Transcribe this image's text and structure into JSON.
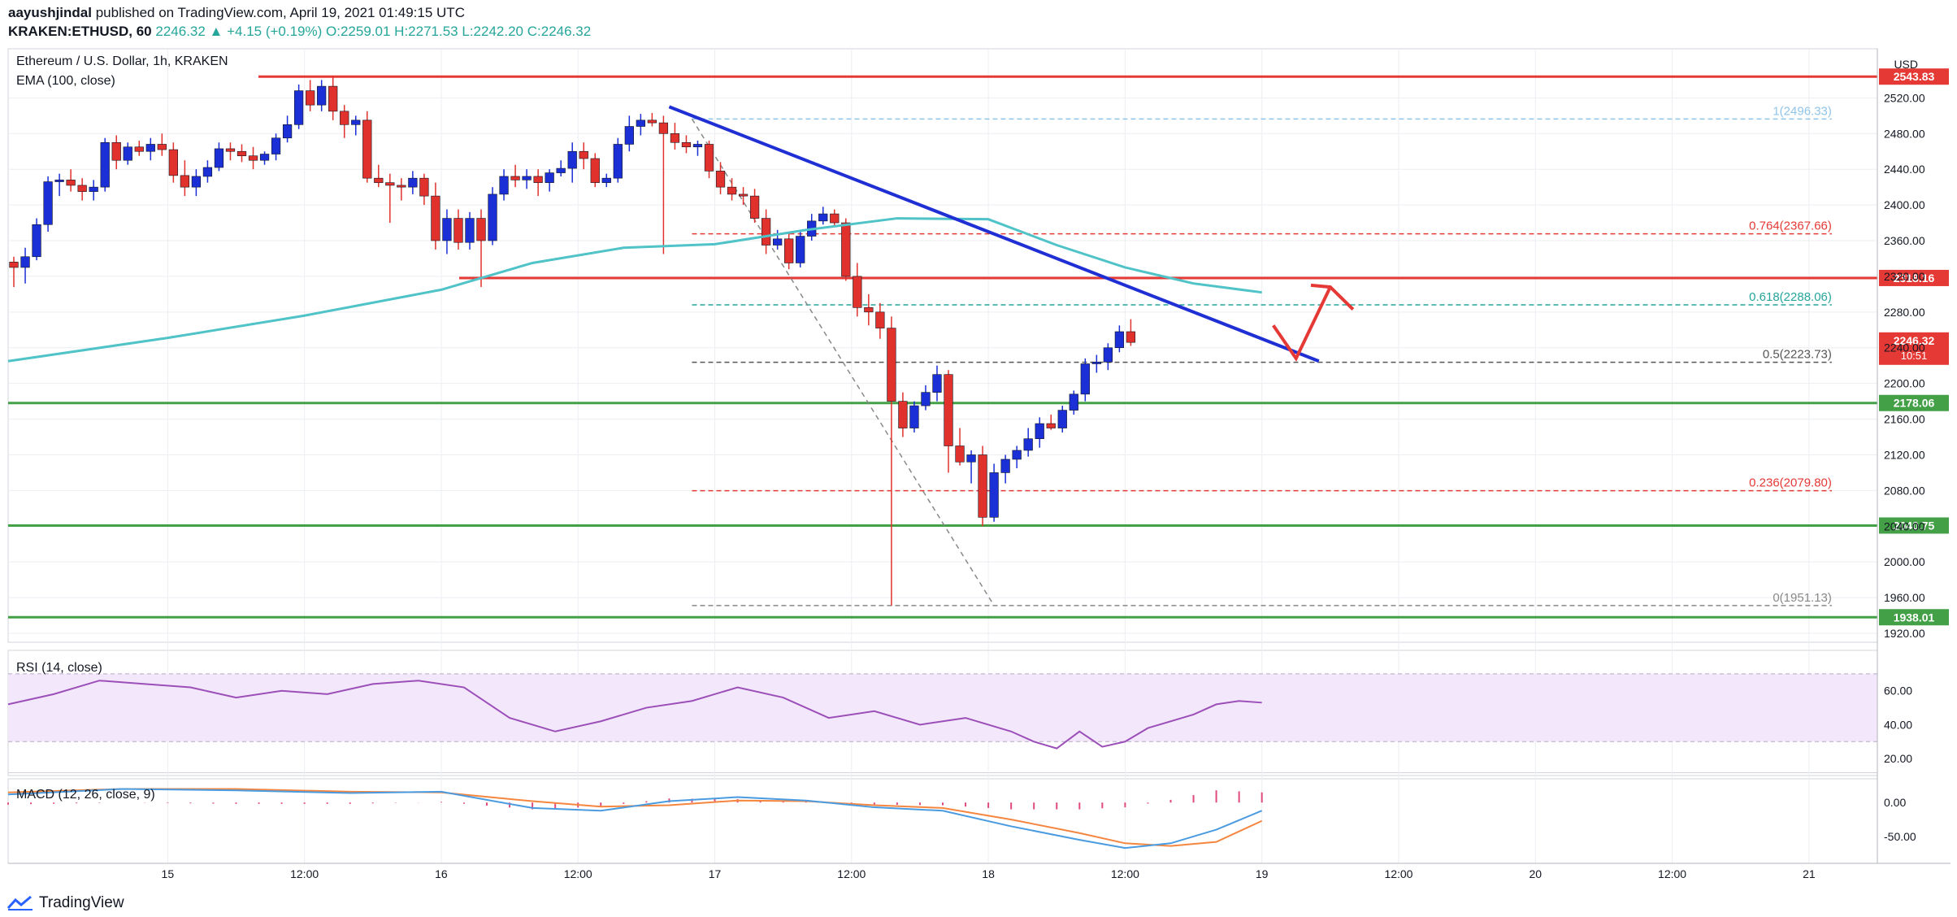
{
  "header": {
    "publisher": "aayushjindal",
    "published_text": "published on TradingView.com, April 19, 2021 01:49:15 UTC",
    "symbol_line": "KRAKEN:ETHUSD, 60",
    "change": "2246.32 ▲ +4.15 (+0.19%)",
    "o": "O:2259.01",
    "h": "H:2271.53",
    "l": "L:2242.20",
    "c": "C:2246.32"
  },
  "footer": {
    "brand": "TradingView"
  },
  "colors": {
    "up": "#1a2fd6",
    "down": "#e0312c",
    "ema": "#4fc3c7",
    "trend": "#1f2fd4",
    "res": "#e53935",
    "sup": "#43a047",
    "rsi": "#9c4fb8",
    "macd": "#4a9be0",
    "signal": "#f5863f",
    "hist": "#e04a7a"
  },
  "chart_data": {
    "type": "candlestick",
    "title": "Ethereum / U.S. Dollar, 1h, KRAKEN",
    "indicator_label": "EMA (100, close)",
    "currency_label": "USD",
    "ylim": [
      1910,
      2575
    ],
    "y_ticks": [
      1920,
      1960,
      2000,
      2040,
      2080,
      2120,
      2160,
      2200,
      2240,
      2280,
      2320,
      2360,
      2400,
      2440,
      2480,
      2520
    ],
    "x_range_hours": [
      0,
      164
    ],
    "x_ticks": [
      {
        "h": 14,
        "label": "15"
      },
      {
        "h": 26,
        "label": "12:00"
      },
      {
        "h": 38,
        "label": "16"
      },
      {
        "h": 50,
        "label": "12:00"
      },
      {
        "h": 62,
        "label": "17"
      },
      {
        "h": 74,
        "label": "12:00"
      },
      {
        "h": 86,
        "label": "18"
      },
      {
        "h": 98,
        "label": "12:00"
      },
      {
        "h": 110,
        "label": "19"
      },
      {
        "h": 122,
        "label": "12:00"
      },
      {
        "h": 134,
        "label": "20"
      },
      {
        "h": 146,
        "label": "12:00"
      },
      {
        "h": 158,
        "label": "21"
      }
    ],
    "candles": [
      [
        2336,
        2342,
        2308,
        2330
      ],
      [
        2330,
        2352,
        2312,
        2342
      ],
      [
        2342,
        2385,
        2338,
        2378
      ],
      [
        2378,
        2432,
        2370,
        2426
      ],
      [
        2426,
        2435,
        2410,
        2428
      ],
      [
        2428,
        2440,
        2415,
        2422
      ],
      [
        2422,
        2430,
        2405,
        2415
      ],
      [
        2415,
        2428,
        2405,
        2420
      ],
      [
        2420,
        2475,
        2415,
        2470
      ],
      [
        2470,
        2478,
        2440,
        2450
      ],
      [
        2450,
        2470,
        2445,
        2465
      ],
      [
        2465,
        2472,
        2455,
        2460
      ],
      [
        2460,
        2475,
        2450,
        2468
      ],
      [
        2468,
        2480,
        2455,
        2462
      ],
      [
        2462,
        2470,
        2425,
        2433
      ],
      [
        2433,
        2450,
        2410,
        2420
      ],
      [
        2420,
        2440,
        2410,
        2432
      ],
      [
        2432,
        2450,
        2425,
        2442
      ],
      [
        2442,
        2470,
        2438,
        2463
      ],
      [
        2463,
        2470,
        2450,
        2460
      ],
      [
        2460,
        2468,
        2448,
        2455
      ],
      [
        2455,
        2465,
        2440,
        2450
      ],
      [
        2450,
        2460,
        2445,
        2457
      ],
      [
        2457,
        2480,
        2450,
        2475
      ],
      [
        2475,
        2500,
        2470,
        2490
      ],
      [
        2490,
        2535,
        2485,
        2528
      ],
      [
        2528,
        2540,
        2505,
        2512
      ],
      [
        2512,
        2540,
        2505,
        2533
      ],
      [
        2533,
        2545,
        2495,
        2505
      ],
      [
        2505,
        2512,
        2475,
        2490
      ],
      [
        2490,
        2500,
        2478,
        2495
      ],
      [
        2495,
        2505,
        2425,
        2430
      ],
      [
        2430,
        2445,
        2420,
        2425
      ],
      [
        2425,
        2435,
        2380,
        2422
      ],
      [
        2422,
        2430,
        2405,
        2420
      ],
      [
        2420,
        2438,
        2412,
        2430
      ],
      [
        2430,
        2435,
        2400,
        2410
      ],
      [
        2410,
        2425,
        2350,
        2360
      ],
      [
        2360,
        2395,
        2345,
        2385
      ],
      [
        2385,
        2395,
        2350,
        2358
      ],
      [
        2358,
        2392,
        2350,
        2385
      ],
      [
        2385,
        2395,
        2308,
        2360
      ],
      [
        2360,
        2420,
        2355,
        2412
      ],
      [
        2412,
        2440,
        2405,
        2432
      ],
      [
        2432,
        2445,
        2420,
        2428
      ],
      [
        2428,
        2440,
        2418,
        2432
      ],
      [
        2432,
        2440,
        2410,
        2425
      ],
      [
        2425,
        2440,
        2415,
        2436
      ],
      [
        2436,
        2450,
        2432,
        2441
      ],
      [
        2441,
        2470,
        2425,
        2460
      ],
      [
        2460,
        2470,
        2440,
        2452
      ],
      [
        2452,
        2458,
        2420,
        2425
      ],
      [
        2425,
        2435,
        2420,
        2430
      ],
      [
        2430,
        2475,
        2425,
        2468
      ],
      [
        2468,
        2500,
        2460,
        2488
      ],
      [
        2488,
        2502,
        2478,
        2495
      ],
      [
        2495,
        2503,
        2488,
        2492
      ],
      [
        2492,
        2500,
        2345,
        2480
      ],
      [
        2480,
        2492,
        2462,
        2470
      ],
      [
        2470,
        2478,
        2458,
        2465
      ],
      [
        2465,
        2472,
        2455,
        2468
      ],
      [
        2468,
        2472,
        2430,
        2438
      ],
      [
        2438,
        2448,
        2412,
        2420
      ],
      [
        2420,
        2430,
        2405,
        2412
      ],
      [
        2412,
        2420,
        2400,
        2410
      ],
      [
        2410,
        2418,
        2380,
        2385
      ],
      [
        2385,
        2395,
        2345,
        2355
      ],
      [
        2355,
        2372,
        2350,
        2362
      ],
      [
        2362,
        2370,
        2328,
        2335
      ],
      [
        2335,
        2372,
        2330,
        2365
      ],
      [
        2365,
        2390,
        2360,
        2382
      ],
      [
        2382,
        2398,
        2378,
        2390
      ],
      [
        2390,
        2395,
        2376,
        2380
      ],
      [
        2380,
        2385,
        2315,
        2320
      ],
      [
        2320,
        2335,
        2275,
        2285
      ],
      [
        2285,
        2300,
        2265,
        2280
      ],
      [
        2280,
        2290,
        2250,
        2262
      ],
      [
        2262,
        2275,
        1951,
        2180
      ],
      [
        2180,
        2190,
        2140,
        2150
      ],
      [
        2150,
        2180,
        2145,
        2175
      ],
      [
        2175,
        2198,
        2170,
        2190
      ],
      [
        2190,
        2220,
        2180,
        2210
      ],
      [
        2210,
        2215,
        2100,
        2130
      ],
      [
        2130,
        2150,
        2108,
        2112
      ],
      [
        2112,
        2125,
        2088,
        2120
      ],
      [
        2120,
        2130,
        2040,
        2050
      ],
      [
        2050,
        2110,
        2045,
        2100
      ],
      [
        2100,
        2120,
        2088,
        2115
      ],
      [
        2115,
        2130,
        2105,
        2125
      ],
      [
        2125,
        2150,
        2118,
        2138
      ],
      [
        2138,
        2162,
        2128,
        2155
      ],
      [
        2155,
        2165,
        2148,
        2150
      ],
      [
        2150,
        2175,
        2145,
        2170
      ],
      [
        2170,
        2192,
        2165,
        2188
      ],
      [
        2188,
        2228,
        2180,
        2222
      ],
      [
        2222,
        2232,
        2212,
        2224
      ],
      [
        2224,
        2245,
        2215,
        2240
      ],
      [
        2240,
        2265,
        2235,
        2258
      ],
      [
        2258,
        2272,
        2242,
        2246
      ]
    ],
    "ema_100": [
      [
        0,
        2225
      ],
      [
        14,
        2251
      ],
      [
        26,
        2276
      ],
      [
        38,
        2305
      ],
      [
        46,
        2335
      ],
      [
        54,
        2352
      ],
      [
        62,
        2356
      ],
      [
        70,
        2372
      ],
      [
        78,
        2385
      ],
      [
        86,
        2384
      ],
      [
        92,
        2355
      ],
      [
        98,
        2330
      ],
      [
        104,
        2312
      ],
      [
        110,
        2302
      ]
    ],
    "horizontal_levels": [
      {
        "value": 2543.83,
        "label": "2543.83",
        "color": "red"
      },
      {
        "value": 2318.16,
        "label": "2318.16",
        "color": "red"
      },
      {
        "value": 2178.06,
        "label": "2178.06",
        "color": "green"
      },
      {
        "value": 2040.75,
        "label": "2040.75",
        "color": "green"
      },
      {
        "value": 1938.01,
        "label": "1938.01",
        "color": "green"
      }
    ],
    "fib_levels": [
      {
        "value": 2496.33,
        "label": "1(2496.33)"
      },
      {
        "value": 2367.66,
        "label": "0.764(2367.66)"
      },
      {
        "value": 2288.06,
        "label": "0.618(2288.06)"
      },
      {
        "value": 2223.73,
        "label": "0.5(2223.73)"
      },
      {
        "value": 2079.8,
        "label": "0.236(2079.80)"
      },
      {
        "value": 1951.13,
        "label": "0(1951.13)"
      }
    ],
    "last_price": {
      "value": 2246.32,
      "label": "2246.32",
      "countdown": "10:51"
    },
    "trendline": [
      [
        58,
        2510
      ],
      [
        115,
        2225
      ]
    ],
    "rsi": {
      "label": "RSI (14, close)",
      "ticks": [
        20,
        40,
        60
      ],
      "band": [
        30,
        70
      ],
      "values": [
        [
          0,
          52
        ],
        [
          4,
          58
        ],
        [
          8,
          66
        ],
        [
          12,
          64
        ],
        [
          16,
          62
        ],
        [
          20,
          56
        ],
        [
          24,
          60
        ],
        [
          28,
          58
        ],
        [
          32,
          64
        ],
        [
          36,
          66
        ],
        [
          40,
          62
        ],
        [
          44,
          44
        ],
        [
          48,
          36
        ],
        [
          52,
          42
        ],
        [
          56,
          50
        ],
        [
          60,
          54
        ],
        [
          64,
          62
        ],
        [
          68,
          56
        ],
        [
          72,
          44
        ],
        [
          76,
          48
        ],
        [
          80,
          40
        ],
        [
          84,
          44
        ],
        [
          88,
          36
        ],
        [
          90,
          30
        ],
        [
          92,
          26
        ],
        [
          94,
          36
        ],
        [
          96,
          27
        ],
        [
          98,
          30
        ],
        [
          100,
          38
        ],
        [
          104,
          46
        ],
        [
          106,
          52
        ],
        [
          108,
          54
        ],
        [
          110,
          53
        ]
      ]
    },
    "macd": {
      "label": "MACD (12, 26, close, 9)",
      "ticks": [
        0.0,
        -50.0
      ],
      "macd_values": [
        [
          0,
          12
        ],
        [
          10,
          20
        ],
        [
          20,
          18
        ],
        [
          30,
          14
        ],
        [
          38,
          16
        ],
        [
          46,
          -8
        ],
        [
          52,
          -12
        ],
        [
          58,
          2
        ],
        [
          64,
          8
        ],
        [
          70,
          3
        ],
        [
          76,
          -7
        ],
        [
          82,
          -12
        ],
        [
          88,
          -35
        ],
        [
          94,
          -55
        ],
        [
          98,
          -67
        ],
        [
          102,
          -60
        ],
        [
          106,
          -40
        ],
        [
          110,
          -12
        ]
      ],
      "signal_values": [
        [
          0,
          15
        ],
        [
          10,
          20
        ],
        [
          20,
          20
        ],
        [
          30,
          16
        ],
        [
          38,
          15
        ],
        [
          46,
          2
        ],
        [
          52,
          -6
        ],
        [
          58,
          -4
        ],
        [
          64,
          3
        ],
        [
          70,
          2
        ],
        [
          76,
          -4
        ],
        [
          82,
          -8
        ],
        [
          88,
          -25
        ],
        [
          94,
          -45
        ],
        [
          98,
          -60
        ],
        [
          102,
          -64
        ],
        [
          106,
          -58
        ],
        [
          110,
          -27
        ]
      ],
      "hist_values": [
        [
          0,
          -3
        ],
        [
          10,
          0
        ],
        [
          20,
          -2
        ],
        [
          30,
          -2
        ],
        [
          38,
          1
        ],
        [
          46,
          -10
        ],
        [
          52,
          -6
        ],
        [
          58,
          6
        ],
        [
          64,
          5
        ],
        [
          70,
          1
        ],
        [
          76,
          -3
        ],
        [
          82,
          -4
        ],
        [
          88,
          -10
        ],
        [
          94,
          -10
        ],
        [
          98,
          -7
        ],
        [
          102,
          4
        ],
        [
          106,
          18
        ],
        [
          110,
          15
        ]
      ]
    }
  }
}
